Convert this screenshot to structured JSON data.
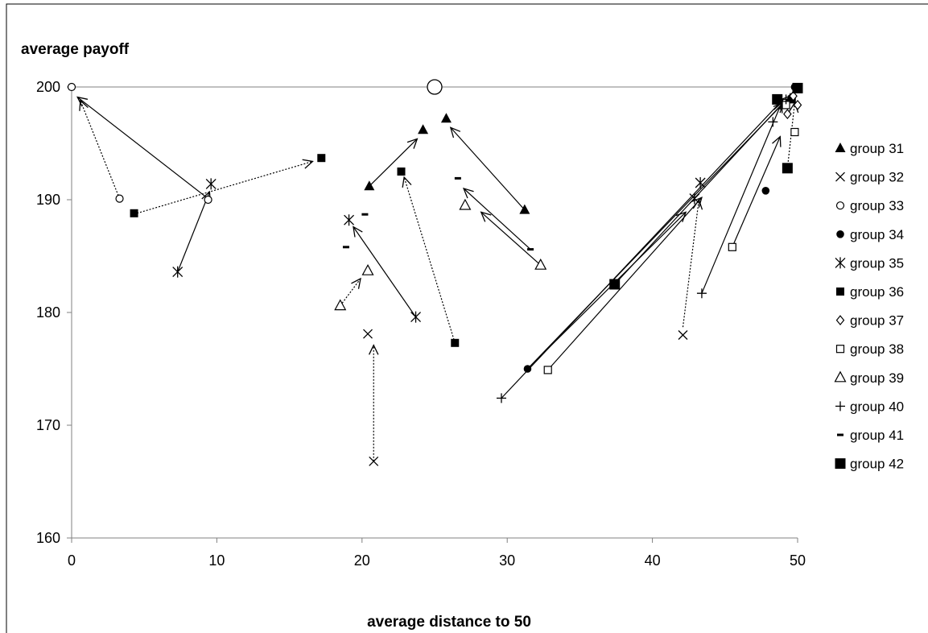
{
  "chart_data": {
    "type": "scatter",
    "title": "",
    "xlabel": "average distance to 50",
    "ylabel": "average payoff",
    "xlim": [
      0,
      50
    ],
    "ylim": [
      160,
      200
    ],
    "xticks": [
      0,
      10,
      20,
      30,
      40,
      50
    ],
    "yticks": [
      160,
      170,
      180,
      190,
      200
    ],
    "grid": false,
    "legend_position": "right",
    "series": [
      {
        "name": "group 31",
        "marker": "triangle-filled",
        "points": [
          [
            20.5,
            191.2
          ],
          [
            24.2,
            196.2
          ],
          [
            25.8,
            197.2
          ],
          [
            31.2,
            189.1
          ],
          [
            49.5,
            199.0
          ]
        ]
      },
      {
        "name": "group 32",
        "marker": "x",
        "points": [
          [
            20.4,
            178.1
          ],
          [
            20.8,
            166.8
          ],
          [
            42.1,
            178.0
          ]
        ]
      },
      {
        "name": "group 33",
        "marker": "circle-open-small",
        "points": [
          [
            0.0,
            200.0
          ],
          [
            3.3,
            190.1
          ],
          [
            9.4,
            190.0
          ]
        ]
      },
      {
        "name": "group 34",
        "marker": "circle-filled",
        "points": [
          [
            31.4,
            175.0
          ],
          [
            47.8,
            190.8
          ],
          [
            49.8,
            200.0
          ]
        ]
      },
      {
        "name": "group 35",
        "marker": "asterisk",
        "points": [
          [
            7.3,
            183.6
          ],
          [
            9.6,
            191.4
          ],
          [
            19.1,
            188.2
          ],
          [
            23.7,
            179.6
          ],
          [
            43.3,
            191.5
          ],
          [
            42.9,
            190.1
          ]
        ]
      },
      {
        "name": "group 36",
        "marker": "square-filled-small",
        "points": [
          [
            4.3,
            188.8
          ],
          [
            17.2,
            193.7
          ],
          [
            22.7,
            192.5
          ],
          [
            26.4,
            177.3
          ],
          [
            49.6,
            198.9
          ]
        ]
      },
      {
        "name": "group 37",
        "marker": "diamond-open",
        "points": [
          [
            49.3,
            197.6
          ],
          [
            50.0,
            198.4
          ],
          [
            49.7,
            199.2
          ]
        ]
      },
      {
        "name": "group 38",
        "marker": "square-open",
        "points": [
          [
            32.8,
            174.9
          ],
          [
            45.5,
            185.8
          ],
          [
            49.8,
            196.0
          ],
          [
            49.2,
            198.4
          ]
        ]
      },
      {
        "name": "group 39",
        "marker": "triangle-open",
        "points": [
          [
            18.5,
            180.6
          ],
          [
            20.4,
            183.7
          ],
          [
            27.1,
            189.5
          ],
          [
            32.3,
            184.2
          ]
        ]
      },
      {
        "name": "group 40",
        "marker": "plus",
        "points": [
          [
            29.6,
            172.4
          ],
          [
            43.4,
            181.7
          ],
          [
            48.3,
            196.9
          ],
          [
            49.2,
            198.9
          ]
        ]
      },
      {
        "name": "group 41",
        "marker": "dash",
        "points": [
          [
            18.9,
            185.8
          ],
          [
            20.2,
            188.7
          ],
          [
            26.6,
            191.9
          ],
          [
            31.6,
            185.6
          ]
        ]
      },
      {
        "name": "group 42",
        "marker": "square-filled-large",
        "points": [
          [
            37.4,
            182.5
          ],
          [
            48.6,
            198.9
          ],
          [
            49.3,
            192.8
          ],
          [
            50.0,
            199.9
          ]
        ]
      }
    ],
    "extra_markers": [
      {
        "marker": "circle-open-large",
        "x": 25.0,
        "y": 200.0
      }
    ],
    "arrows": [
      {
        "from": [
          9.3,
          190.2
        ],
        "to": [
          0.4,
          199.1
        ],
        "style": "solid"
      },
      {
        "from": [
          3.3,
          190.1
        ],
        "to": [
          0.6,
          198.8
        ],
        "style": "dotted"
      },
      {
        "from": [
          4.5,
          188.8
        ],
        "to": [
          16.6,
          193.4
        ],
        "style": "dotted"
      },
      {
        "from": [
          7.3,
          183.6
        ],
        "to": [
          9.5,
          190.7
        ],
        "style": "solid"
      },
      {
        "from": [
          20.5,
          191.2
        ],
        "to": [
          23.8,
          195.4
        ],
        "style": "solid"
      },
      {
        "from": [
          18.5,
          180.6
        ],
        "to": [
          19.9,
          183.0
        ],
        "style": "dotted"
      },
      {
        "from": [
          23.7,
          179.6
        ],
        "to": [
          19.4,
          187.6
        ],
        "style": "solid"
      },
      {
        "from": [
          26.4,
          177.3
        ],
        "to": [
          22.9,
          192.0
        ],
        "style": "dotted"
      },
      {
        "from": [
          20.8,
          166.8
        ],
        "to": [
          20.8,
          177.1
        ],
        "style": "dotted"
      },
      {
        "from": [
          31.2,
          189.1
        ],
        "to": [
          26.1,
          196.4
        ],
        "style": "solid"
      },
      {
        "from": [
          31.6,
          185.6
        ],
        "to": [
          27.0,
          191.0
        ],
        "style": "solid"
      },
      {
        "from": [
          32.3,
          184.2
        ],
        "to": [
          28.2,
          188.9
        ],
        "style": "solid"
      },
      {
        "from": [
          29.6,
          172.4
        ],
        "to": [
          49.0,
          198.9
        ],
        "style": "solid"
      },
      {
        "from": [
          31.4,
          175.0
        ],
        "to": [
          42.3,
          188.9
        ],
        "style": "solid"
      },
      {
        "from": [
          31.4,
          175.0
        ],
        "to": [
          49.5,
          199.2
        ],
        "style": "solid"
      },
      {
        "from": [
          32.8,
          174.9
        ],
        "to": [
          43.4,
          190.2
        ],
        "style": "solid"
      },
      {
        "from": [
          37.4,
          182.5
        ],
        "to": [
          49.0,
          198.6
        ],
        "style": "solid"
      },
      {
        "from": [
          42.1,
          178.7
        ],
        "to": [
          43.2,
          190.0
        ],
        "style": "dotted"
      },
      {
        "from": [
          43.4,
          181.7
        ],
        "to": [
          48.9,
          198.6
        ],
        "style": "solid"
      },
      {
        "from": [
          45.5,
          185.8
        ],
        "to": [
          48.8,
          195.6
        ],
        "style": "solid"
      },
      {
        "from": [
          49.3,
          192.8
        ],
        "to": [
          49.8,
          198.6
        ],
        "style": "dotted"
      }
    ]
  }
}
